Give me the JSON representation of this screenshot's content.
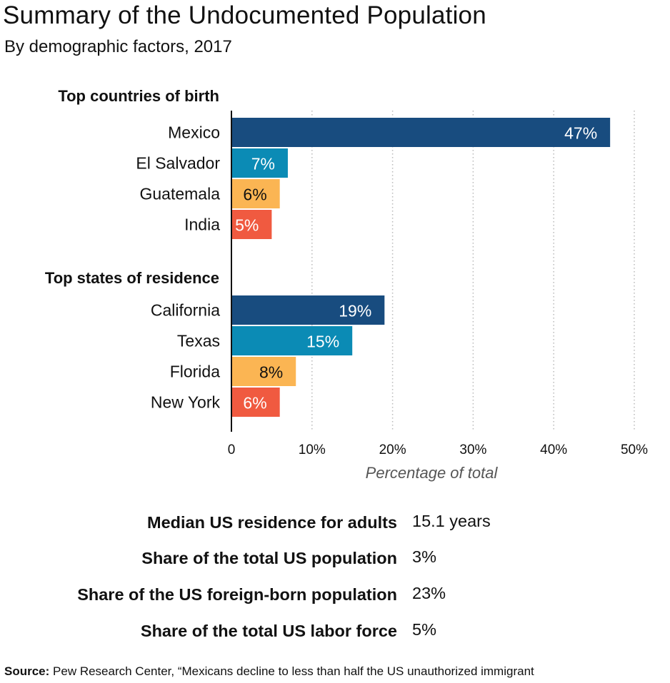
{
  "header": {
    "title": "Summary of the Undocumented Population",
    "subtitle": "By demographic factors, 2017"
  },
  "chart_data": {
    "type": "bar",
    "orientation": "horizontal",
    "xlabel": "Percentage of total",
    "xlim": [
      0,
      50
    ],
    "xticks": [
      "0",
      "10%",
      "20%",
      "30%",
      "40%",
      "50%"
    ],
    "tick_values": [
      0,
      10,
      20,
      30,
      40,
      50
    ],
    "grid": "vertical dotted",
    "groups": [
      {
        "heading": "Top countries of birth",
        "categories": [
          "Mexico",
          "El Salvador",
          "Guatemala",
          "India"
        ],
        "values": [
          47,
          7,
          6,
          5
        ],
        "labels": [
          "47%",
          "7%",
          "6%",
          "5%"
        ]
      },
      {
        "heading": "Top states of residence",
        "categories": [
          "California",
          "Texas",
          "Florida",
          "New York"
        ],
        "values": [
          19,
          15,
          8,
          6
        ],
        "labels": [
          "19%",
          "15%",
          "8%",
          "6%"
        ]
      }
    ],
    "bar_colors": [
      "#184c7f",
      "#0b8bb5",
      "#fbb553",
      "#f05a40"
    ],
    "label_colors": [
      "#ffffff",
      "#ffffff",
      "#111111",
      "#ffffff"
    ]
  },
  "stats": [
    {
      "label": "Median US residence for adults",
      "value": "15.1 years"
    },
    {
      "label": "Share of the total US population",
      "value": "3%"
    },
    {
      "label": "Share of the US foreign-born population",
      "value": "23%"
    },
    {
      "label": "Share of the total US labor force",
      "value": "5%"
    }
  ],
  "source": {
    "label": "Source:",
    "text": " Pew Research Center, “Mexicans decline to less than half the US unauthorized immigrant"
  }
}
